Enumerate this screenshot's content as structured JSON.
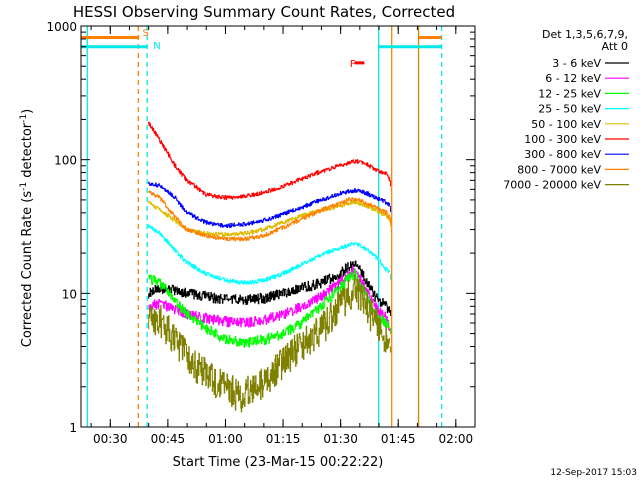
{
  "chart_data": {
    "type": "line",
    "title": "HESSI Observing Summary Count Rates, Corrected",
    "xlabel": "Start Time (23-Mar-15 00:22:22)",
    "ylabel": "Corrected Count Rate (s-1 detector-1)",
    "ylabel_parts": [
      "Corrected Count Rate (s",
      "-1",
      " detector",
      "-1",
      ")"
    ],
    "timestamp": "12-Sep-2017 15:03",
    "y_scale": "log",
    "ylim": [
      1,
      1000
    ],
    "xlim_minutes": [
      22.37,
      125
    ],
    "x_tick_labels": [
      "00:30",
      "00:45",
      "01:00",
      "01:15",
      "01:30",
      "01:45",
      "02:00"
    ],
    "y_tick_labels": [
      "1",
      "10",
      "100",
      "1000"
    ],
    "legend_header": [
      "Det 1,3,5,6,7,9,",
      "Att 0"
    ],
    "legend_placement": "top-right",
    "x_time_unit": "minutes after 00:00 UT",
    "grid": false,
    "series": [
      {
        "name": "3 - 6 keV",
        "color": "#000000",
        "x": [
          40,
          43,
          47,
          50,
          55,
          60,
          65,
          70,
          75,
          80,
          85,
          90,
          92,
          94,
          95,
          97,
          99,
          102,
          103
        ],
        "y": [
          10,
          11,
          10.5,
          10,
          9.5,
          9,
          9,
          9.2,
          10,
          11,
          12,
          14,
          16,
          17,
          15,
          12,
          9.5,
          8,
          7.5
        ]
      },
      {
        "name": "6 - 12 keV",
        "color": "#ff00ff",
        "x": [
          40,
          43,
          47,
          50,
          55,
          60,
          65,
          70,
          75,
          80,
          85,
          90,
          92,
          94,
          95,
          97,
          99,
          102,
          103
        ],
        "y": [
          8,
          8.5,
          7.5,
          7,
          6.5,
          6.2,
          6,
          6.3,
          7,
          8,
          9.5,
          12,
          14,
          15,
          13,
          10,
          8,
          6.5,
          5.5
        ]
      },
      {
        "name": "12 - 25 keV",
        "color": "#00ff00",
        "x": [
          40,
          43,
          47,
          50,
          55,
          60,
          65,
          70,
          75,
          80,
          85,
          90,
          92,
          94,
          95,
          97,
          99,
          102,
          103
        ],
        "y": [
          13,
          12,
          9,
          7,
          5.5,
          4.5,
          4.3,
          4.5,
          5,
          6,
          8,
          11,
          13,
          14,
          12,
          9,
          7,
          6,
          5.5
        ]
      },
      {
        "name": "25 - 50 keV",
        "color": "#00ffff",
        "x": [
          40,
          43,
          47,
          50,
          55,
          60,
          65,
          70,
          75,
          80,
          85,
          90,
          92,
          94,
          95,
          97,
          99,
          102,
          103
        ],
        "y": [
          32,
          28,
          21,
          17,
          14,
          12.5,
          12,
          12.5,
          14,
          16.5,
          19.5,
          22,
          23,
          23.5,
          23,
          21,
          19,
          15,
          14
        ]
      },
      {
        "name": "50 - 100 keV",
        "color": "#ddbb00",
        "x": [
          40,
          43,
          47,
          50,
          55,
          60,
          65,
          70,
          75,
          80,
          85,
          90,
          92,
          94,
          95,
          97,
          99,
          102,
          103
        ],
        "y": [
          48,
          42,
          35,
          30,
          28,
          27.5,
          28,
          30,
          34,
          38,
          42,
          45,
          47,
          48,
          47,
          45,
          42,
          38,
          35
        ]
      },
      {
        "name": "100 - 300 keV",
        "color": "#ff0000",
        "x": [
          40,
          43,
          47,
          50,
          55,
          60,
          65,
          70,
          75,
          80,
          85,
          90,
          92,
          94,
          95,
          97,
          99,
          102,
          103
        ],
        "y": [
          190,
          140,
          90,
          70,
          55,
          52,
          53,
          57,
          63,
          72,
          82,
          90,
          95,
          97,
          96,
          92,
          85,
          78,
          70
        ]
      },
      {
        "name": "300 - 800 keV",
        "color": "#0000ff",
        "x": [
          40,
          43,
          47,
          50,
          55,
          60,
          65,
          70,
          75,
          80,
          85,
          90,
          92,
          94,
          95,
          97,
          99,
          102,
          103
        ],
        "y": [
          66,
          64,
          52,
          40,
          34,
          32,
          33,
          35,
          39,
          44,
          50,
          56,
          58,
          59,
          58,
          56,
          52,
          48,
          45
        ]
      },
      {
        "name": "800 - 7000 keV",
        "color": "#ff8000",
        "x": [
          40,
          43,
          47,
          50,
          55,
          60,
          65,
          70,
          75,
          80,
          85,
          90,
          92,
          94,
          95,
          97,
          99,
          102,
          103
        ],
        "y": [
          58,
          52,
          37,
          30,
          27,
          25.5,
          25.5,
          27,
          31,
          36,
          42,
          47,
          50,
          51,
          50,
          47,
          44,
          40,
          37
        ]
      },
      {
        "name": "7000 - 20000 keV",
        "color": "#808000",
        "x": [
          40,
          43,
          46,
          49,
          52,
          55,
          58,
          61,
          64,
          67,
          70,
          73,
          76,
          79,
          82,
          85,
          88,
          90,
          92,
          94,
          96,
          98,
          100,
          102,
          103
        ],
        "y": [
          7,
          6.5,
          5,
          3.8,
          3,
          2.6,
          2.2,
          2,
          1.7,
          2,
          2.2,
          2.8,
          3.4,
          4,
          4.6,
          5.5,
          7,
          8.5,
          10,
          11,
          9,
          7,
          6,
          4.5,
          4
        ]
      }
    ],
    "vertical_markers": [
      {
        "x": 24.0,
        "color": "#00e8e8",
        "style": "solid"
      },
      {
        "x": 37.3,
        "color": "#ff8000",
        "style": "dashed"
      },
      {
        "x": 39.6,
        "color": "#00e8e8",
        "style": "dashed"
      },
      {
        "x": 99.9,
        "color": "#00e8e8",
        "style": "solid"
      },
      {
        "x": 103.3,
        "color": "#ff8000",
        "style": "solid"
      },
      {
        "x": 110.3,
        "color": "#cc8800",
        "style": "solid"
      },
      {
        "x": 116.3,
        "color": "#00e8e8",
        "style": "dashed"
      }
    ],
    "top_bars": [
      {
        "x0": 22.37,
        "x1": 37.5,
        "y": 820,
        "color": "#ff8000"
      },
      {
        "x0": 22.37,
        "x1": 39.6,
        "y": 700,
        "color": "#00e8e8"
      },
      {
        "x0": 99.9,
        "x1": 110.3,
        "y": 700,
        "color": "#00e8e8"
      },
      {
        "x0": 110.3,
        "x1": 116.3,
        "y": 820,
        "color": "#ff8000"
      },
      {
        "x0": 110.3,
        "x1": 116.3,
        "y": 700,
        "color": "#00e8e8"
      }
    ],
    "annotations": [
      {
        "text": "S",
        "x": 38.4,
        "y": 900,
        "color": "#ff8000"
      },
      {
        "text": "N",
        "x": 41.2,
        "y": 720,
        "color": "#00e8e8"
      },
      {
        "text": "F",
        "x": 92.4,
        "y": 530,
        "color": "#ff0000"
      }
    ],
    "flare_bar": {
      "x0": 93.6,
      "x1": 96.2,
      "y": 530,
      "color": "#ff0000"
    }
  }
}
